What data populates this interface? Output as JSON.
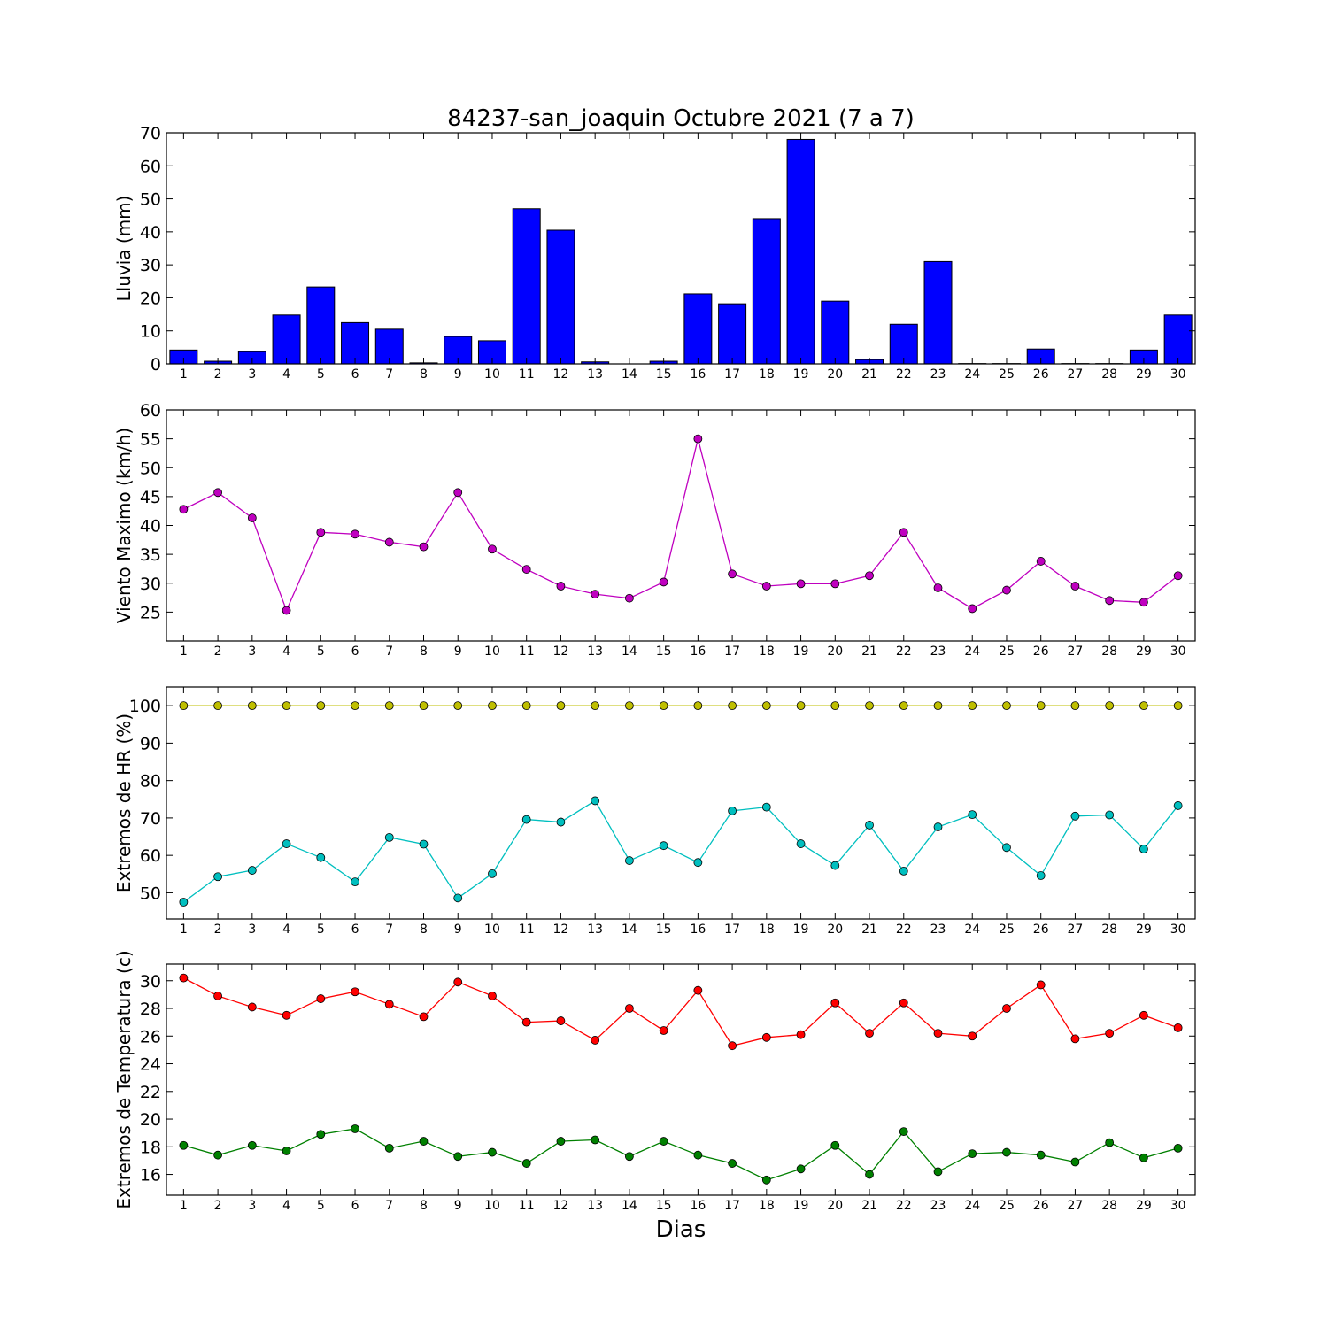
{
  "chart_data": {
    "title": "84237-san_joaquin Octubre 2021  (7 a 7)",
    "xlabel": "Dias",
    "x": [
      1,
      2,
      3,
      4,
      5,
      6,
      7,
      8,
      9,
      10,
      11,
      12,
      13,
      14,
      15,
      16,
      17,
      18,
      19,
      20,
      21,
      22,
      23,
      24,
      25,
      26,
      27,
      28,
      29,
      30
    ],
    "panels": [
      {
        "type": "bar",
        "ylabel": "Lluvia (mm)",
        "ylim": [
          0,
          70
        ],
        "yticks": [
          0,
          10,
          20,
          30,
          40,
          50,
          60,
          70
        ],
        "series": [
          {
            "color": "#0000ff",
            "values": [
              4.2,
              0.8,
              3.7,
              14.8,
              23.3,
              12.5,
              10.5,
              0.3,
              8.3,
              7.0,
              47.0,
              40.5,
              0.6,
              0.0,
              0.8,
              21.2,
              18.2,
              44.0,
              68.0,
              19.0,
              1.3,
              12.0,
              31.0,
              0.1,
              0.1,
              4.5,
              0.1,
              0.1,
              4.2,
              14.8
            ]
          }
        ]
      },
      {
        "type": "line",
        "ylabel": "Viento Maximo (km/h)",
        "ylim": [
          20,
          60
        ],
        "yticks": [
          25,
          30,
          35,
          40,
          45,
          50,
          55,
          60
        ],
        "series": [
          {
            "color": "#bf00bf",
            "values": [
              42.8,
              45.7,
              41.3,
              25.3,
              38.8,
              38.5,
              37.1,
              36.3,
              45.7,
              35.9,
              32.4,
              29.5,
              28.1,
              27.4,
              30.2,
              55.0,
              31.6,
              29.5,
              29.9,
              29.9,
              31.3,
              38.8,
              29.2,
              25.6,
              28.8,
              33.8,
              29.5,
              27.0,
              26.7,
              31.3
            ]
          }
        ]
      },
      {
        "type": "line",
        "ylabel": "Extremos de HR (%)",
        "ylim": [
          43,
          105
        ],
        "yticks": [
          50,
          60,
          70,
          80,
          90,
          100
        ],
        "series": [
          {
            "color": "#bfbf00",
            "values": [
              100,
              100,
              100,
              100,
              100,
              100,
              100,
              100,
              100,
              100,
              100,
              100,
              100,
              100,
              100,
              100,
              100,
              100,
              100,
              100,
              100,
              100,
              100,
              100,
              100,
              100,
              100,
              100,
              100,
              100
            ]
          },
          {
            "color": "#00bfbf",
            "values": [
              47.5,
              54.3,
              56.0,
              63.1,
              59.4,
              52.9,
              64.8,
              63.0,
              48.6,
              55.1,
              69.6,
              68.9,
              74.6,
              58.6,
              62.6,
              58.1,
              71.9,
              72.9,
              63.1,
              57.3,
              68.1,
              55.8,
              67.6,
              70.9,
              62.1,
              54.6,
              70.5,
              70.8,
              61.7,
              73.3
            ]
          }
        ]
      },
      {
        "type": "line",
        "ylabel": "Extremos de Temperatura (c)",
        "ylim": [
          14.5,
          31.2
        ],
        "yticks": [
          16,
          18,
          20,
          22,
          24,
          26,
          28,
          30
        ],
        "series": [
          {
            "color": "#ff0000",
            "values": [
              30.2,
              28.9,
              28.1,
              27.5,
              28.7,
              29.2,
              28.3,
              27.4,
              29.9,
              28.9,
              27.0,
              27.1,
              25.7,
              28.0,
              26.4,
              29.3,
              25.3,
              25.9,
              26.1,
              28.4,
              26.2,
              28.4,
              26.2,
              26.0,
              28.0,
              29.7,
              25.8,
              26.2,
              27.5,
              26.6
            ]
          },
          {
            "color": "#008000",
            "values": [
              18.1,
              17.4,
              18.1,
              17.7,
              18.9,
              19.3,
              17.9,
              18.4,
              17.3,
              17.6,
              16.8,
              18.4,
              18.5,
              17.3,
              18.4,
              17.4,
              16.8,
              15.6,
              16.4,
              18.1,
              16.0,
              19.1,
              16.2,
              17.5,
              17.6,
              17.4,
              16.9,
              18.3,
              17.2,
              17.9
            ]
          }
        ]
      }
    ]
  }
}
